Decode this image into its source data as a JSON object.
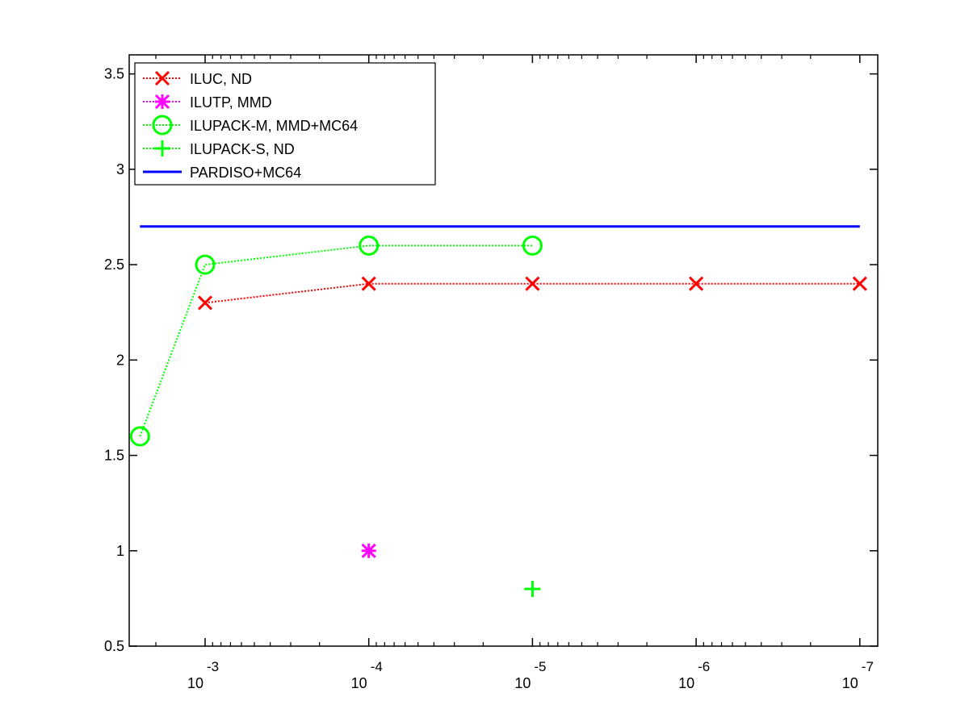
{
  "chart_data": {
    "type": "line",
    "title": "",
    "xlabel": "",
    "ylabel": "",
    "x_scale": "log",
    "x_reversed": true,
    "xlim": [
      0.0025,
      1e-07
    ],
    "ylim": [
      0.5,
      3.6
    ],
    "y_ticks": [
      0.5,
      1,
      1.5,
      2,
      2.5,
      3,
      3.5
    ],
    "y_tick_labels": [
      "0.5",
      "1",
      "1.5",
      "2",
      "2.5",
      "3",
      "3.5"
    ],
    "x_ticks": [
      {
        "value": 0.001,
        "base": "10",
        "exponent": "-3"
      },
      {
        "value": 0.0001,
        "base": "10",
        "exponent": "-4"
      },
      {
        "value": 1e-05,
        "base": "10",
        "exponent": "-5"
      },
      {
        "value": 1e-06,
        "base": "10",
        "exponent": "-6"
      },
      {
        "value": 1e-07,
        "base": "10",
        "exponent": "-7"
      }
    ],
    "grid": false,
    "legend_position": "top-left",
    "series": [
      {
        "name": "ILUC,  ND",
        "color": "#ff0000",
        "marker": "x",
        "line_style": "dotted",
        "points": [
          {
            "x": 0.001,
            "y": 2.3
          },
          {
            "x": 0.0001,
            "y": 2.4
          },
          {
            "x": 1e-05,
            "y": 2.4
          },
          {
            "x": 1e-06,
            "y": 2.4
          },
          {
            "x": 1e-07,
            "y": 2.4
          }
        ]
      },
      {
        "name": "ILUTP, MMD",
        "color": "#ff00ff",
        "marker": "asterisk",
        "line_style": "dotted",
        "points": [
          {
            "x": 0.0001,
            "y": 1.0
          }
        ]
      },
      {
        "name": "ILUPACK-M, MMD+MC64",
        "color": "#00ff00",
        "marker": "circle",
        "line_style": "dotted",
        "points": [
          {
            "x": 0.0025,
            "y": 1.6
          },
          {
            "x": 0.001,
            "y": 2.5
          },
          {
            "x": 0.0001,
            "y": 2.6
          },
          {
            "x": 1e-05,
            "y": 2.6
          }
        ]
      },
      {
        "name": "ILUPACK-S, ND",
        "color": "#00ff00",
        "marker": "plus",
        "line_style": "dotted",
        "points": [
          {
            "x": 1e-05,
            "y": 0.8
          }
        ]
      },
      {
        "name": "PARDISO+MC64",
        "color": "#0000ff",
        "marker": "none",
        "line_style": "solid",
        "points": [
          {
            "x": 0.0025,
            "y": 2.7
          },
          {
            "x": 1e-07,
            "y": 2.7
          }
        ]
      }
    ]
  }
}
